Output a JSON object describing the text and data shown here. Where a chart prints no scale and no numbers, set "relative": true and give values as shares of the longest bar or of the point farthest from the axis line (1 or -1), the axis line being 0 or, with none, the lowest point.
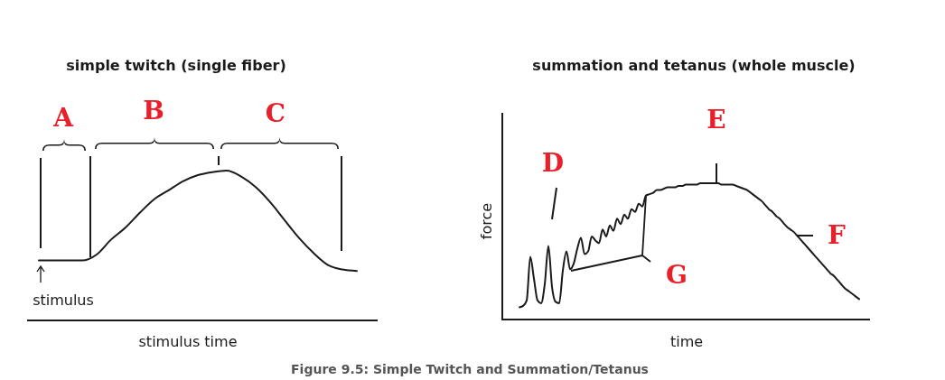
{
  "chart_data": [
    {
      "type": "line",
      "title": "simple twitch (single fiber)",
      "xlabel": "stimulus time",
      "relative": true,
      "color": "#1a1a1a",
      "categories": [
        null,
        null,
        null,
        null,
        null,
        null,
        null,
        null,
        null,
        null,
        null,
        null,
        null,
        null,
        null,
        null,
        null,
        null,
        null,
        null,
        null,
        null,
        null
      ],
      "values": [
        0.4,
        0.4,
        0.4,
        0.4,
        0.44,
        0.54,
        0.62,
        0.72,
        0.81,
        0.87,
        0.93,
        0.97,
        0.99,
        1.0,
        0.96,
        0.89,
        0.79,
        0.67,
        0.55,
        0.45,
        0.37,
        0.34,
        0.33
      ],
      "annotations": [
        "A",
        "B",
        "C",
        "stimulus",
        "Figure 9.5: Simple Twitch and Summation/Tetanus"
      ]
    },
    {
      "type": "line",
      "title": "summation and tetanus (whole muscle)",
      "xlabel": "time",
      "ylabel": "force",
      "relative": true,
      "color": "#1a1a1a",
      "categories": [
        null,
        null,
        null,
        null,
        null,
        null,
        null,
        null,
        null,
        null,
        null,
        null,
        null,
        null,
        null,
        null,
        null,
        null,
        null,
        null,
        null,
        null,
        null,
        null,
        null,
        null,
        null,
        null,
        null,
        null,
        null,
        null,
        null,
        null,
        null,
        null,
        null,
        null,
        null,
        null,
        null,
        null,
        null,
        null,
        null,
        null,
        null,
        null,
        null,
        null,
        null,
        null,
        null,
        null,
        null,
        null,
        null,
        null,
        null,
        null,
        null,
        null,
        null,
        null,
        null,
        null,
        null,
        null,
        null,
        null,
        null,
        null,
        null,
        null,
        null,
        null,
        null,
        null,
        null,
        null,
        null,
        null,
        null,
        null,
        null,
        null,
        null,
        null,
        null,
        null,
        null,
        null,
        null,
        null,
        null
      ],
      "values": [
        0.09,
        0.1,
        0.14,
        0.46,
        0.3,
        0.14,
        0.12,
        0.26,
        0.54,
        0.24,
        0.13,
        0.12,
        0.36,
        0.5,
        0.37,
        0.41,
        0.52,
        0.6,
        0.48,
        0.5,
        0.61,
        0.58,
        0.56,
        0.66,
        0.61,
        0.69,
        0.65,
        0.74,
        0.7,
        0.77,
        0.74,
        0.81,
        0.79,
        0.85,
        0.83,
        0.91,
        0.92,
        0.93,
        0.95,
        0.95,
        0.96,
        0.97,
        0.97,
        0.97,
        0.98,
        0.98,
        0.99,
        0.99,
        0.99,
        0.99,
        1.0,
        1.0,
        1.0,
        1.0,
        1.0,
        1.0,
        0.99,
        0.99,
        0.99,
        0.99,
        0.98,
        0.97,
        0.96,
        0.95,
        0.93,
        0.91,
        0.89,
        0.87,
        0.84,
        0.81,
        0.79,
        0.76,
        0.74,
        0.71,
        0.68,
        0.66,
        0.64,
        0.61,
        0.58,
        0.55,
        0.52,
        0.49,
        0.46,
        0.43,
        0.4,
        0.37,
        0.34,
        0.32,
        0.29,
        0.26,
        0.23,
        0.21,
        0.19,
        0.17,
        0.15
      ],
      "annotations": [
        "D",
        "E",
        "F",
        "G"
      ]
    }
  ]
}
